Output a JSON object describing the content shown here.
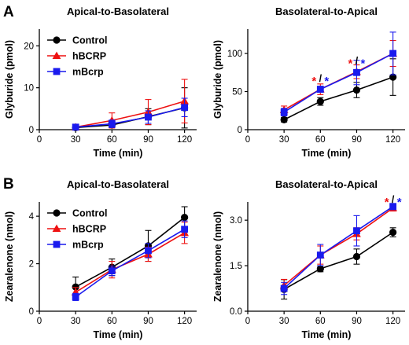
{
  "figure": {
    "panel_letters": [
      "A",
      "B"
    ],
    "colors": {
      "Control": "#000000",
      "hBCRP": "#ee1111",
      "mBcrp": "#1a1aee"
    },
    "legend_labels": [
      "Control",
      "hBCRP",
      "mBcrp"
    ],
    "slash": "/"
  },
  "chart_data": [
    {
      "type": "line",
      "panel": "A",
      "title": "Apical-to-Basolateral",
      "xlabel": "Time (min)",
      "ylabel": "Glyburide (pmol)",
      "x": [
        30,
        60,
        90,
        120
      ],
      "xlim": [
        0,
        130
      ],
      "ylim": [
        0,
        24
      ],
      "xticks": [
        0,
        30,
        60,
        90,
        120
      ],
      "yticks": [
        0,
        10,
        20
      ],
      "legend": "top-left",
      "grid": false,
      "series": [
        {
          "name": "Control",
          "marker": "circle",
          "values": [
            0.5,
            1.1,
            3.1,
            5.2
          ],
          "errors": [
            0.3,
            0.6,
            1.9,
            4.8
          ]
        },
        {
          "name": "hBCRP",
          "marker": "triangle",
          "values": [
            0.6,
            2.2,
            4.2,
            6.8
          ],
          "errors": [
            0.4,
            1.8,
            3.0,
            5.2
          ]
        },
        {
          "name": "mBcrp",
          "marker": "square",
          "values": [
            0.6,
            1.4,
            3.0,
            5.3
          ],
          "errors": [
            0.3,
            0.9,
            1.5,
            2.2
          ]
        }
      ],
      "annotations": []
    },
    {
      "type": "line",
      "panel": "A",
      "title": "Basolateral-to-Apical",
      "xlabel": "Time (min)",
      "ylabel": "Glyburide (pmol)",
      "x": [
        30,
        60,
        90,
        120
      ],
      "xlim": [
        0,
        130
      ],
      "ylim": [
        0,
        132
      ],
      "xticks": [
        0,
        30,
        60,
        90,
        120
      ],
      "yticks": [
        0,
        50,
        100
      ],
      "legend": "none",
      "grid": false,
      "series": [
        {
          "name": "Control",
          "marker": "circle",
          "values": [
            13,
            37,
            52,
            69
          ],
          "errors": [
            3,
            5,
            10,
            24
          ]
        },
        {
          "name": "hBCRP",
          "marker": "triangle",
          "values": [
            26,
            53,
            76,
            100
          ],
          "errors": [
            5,
            7,
            9,
            17
          ]
        },
        {
          "name": "mBcrp",
          "marker": "square",
          "values": [
            23,
            53,
            75,
            100
          ],
          "errors": [
            5,
            4,
            16,
            28
          ]
        }
      ],
      "annotations": [
        {
          "x": 60,
          "y": 65,
          "text": "*"
        },
        {
          "x": 90,
          "y": 88,
          "text": "*"
        }
      ]
    },
    {
      "type": "line",
      "panel": "B",
      "title": "Apical-to-Basolateral",
      "xlabel": "Time (min)",
      "ylabel": "Zearalenone (nmol)",
      "x": [
        30,
        60,
        90,
        120
      ],
      "xlim": [
        0,
        130
      ],
      "ylim": [
        0,
        4.6
      ],
      "xticks": [
        0,
        30,
        60,
        90,
        120
      ],
      "yticks": [
        0.0,
        2.0,
        4.0
      ],
      "legend": "top-left",
      "grid": false,
      "series": [
        {
          "name": "Control",
          "marker": "circle",
          "values": [
            1.02,
            1.85,
            2.75,
            3.95
          ],
          "errors": [
            0.42,
            0.35,
            0.65,
            0.45
          ]
        },
        {
          "name": "hBCRP",
          "marker": "triangle",
          "values": [
            0.8,
            1.75,
            2.4,
            3.3
          ],
          "errors": [
            0.2,
            0.35,
            0.3,
            0.45
          ]
        },
        {
          "name": "mBcrp",
          "marker": "square",
          "values": [
            0.6,
            1.7,
            2.55,
            3.45
          ],
          "errors": [
            0.15,
            0.2,
            0.3,
            0.35
          ]
        }
      ],
      "annotations": []
    },
    {
      "type": "line",
      "panel": "B",
      "title": "Basolateral-to-Apical",
      "xlabel": "Time (min)",
      "ylabel": "Zearalenone (nmol)",
      "x": [
        30,
        60,
        90,
        120
      ],
      "xlim": [
        0,
        130
      ],
      "ylim": [
        0,
        3.6
      ],
      "xticks": [
        0,
        30,
        60,
        90,
        120
      ],
      "yticks": [
        0.0,
        1.5,
        3.0
      ],
      "legend": "none",
      "grid": false,
      "series": [
        {
          "name": "Control",
          "marker": "circle",
          "values": [
            0.72,
            1.4,
            1.8,
            2.6
          ],
          "errors": [
            0.32,
            0.1,
            0.25,
            0.15
          ]
        },
        {
          "name": "hBCRP",
          "marker": "triangle",
          "values": [
            0.85,
            1.85,
            2.55,
            3.4
          ],
          "errors": [
            0.2,
            0.3,
            0.2,
            0.1
          ]
        },
        {
          "name": "mBcrp",
          "marker": "square",
          "values": [
            0.75,
            1.85,
            2.65,
            3.45
          ],
          "errors": [
            0.2,
            0.35,
            0.5,
            0.1
          ]
        }
      ],
      "annotations": [
        {
          "x": 120,
          "y": 3.62,
          "text": "*"
        }
      ]
    }
  ]
}
